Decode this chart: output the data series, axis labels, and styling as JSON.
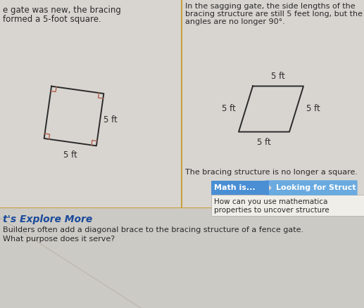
{
  "bg_color": "#d8d5d0",
  "panel_bg": "#d4d1cc",
  "divider_color": "#c8a040",
  "text_color": "#2a2a2a",
  "left_text_line1": "e gate was new, the bracing",
  "left_text_line2": "formed a 5-foot square.",
  "right_text_line1": "In the sagging gate, the side lengths of the",
  "right_text_line2": "bracing structure are still 5 feet long, but the",
  "right_text_line3": "angles are no longer 90°.",
  "no_longer_square_text": "The bracing structure is no longer a square.",
  "math_is_label": "Math is...",
  "looking_for_struct_label": "Looking for Struct",
  "how_can_text": "How can you use mathematica",
  "properties_text": "properties to uncover structure",
  "explore_more_text": "t's Explore More",
  "builders_text": "Builders often add a diagonal brace to the bracing structure of a fence gate.",
  "what_purpose_text": "What purpose does it serve?",
  "square_label_right": "5 ft",
  "square_label_bottom": "5 ft",
  "rhombus_label_top": "5 ft",
  "rhombus_label_left": "5 ft",
  "rhombus_label_right": "5 ft",
  "rhombus_label_bottom": "5 ft",
  "shape_color": "#2a2a2a",
  "corner_mark_color": "#b06050",
  "math_is_bg": "#4a8fd4",
  "looking_for_bg": "#6aaae0",
  "explore_more_color": "#1a4a9a",
  "white_box_bg": "#f0eee8"
}
